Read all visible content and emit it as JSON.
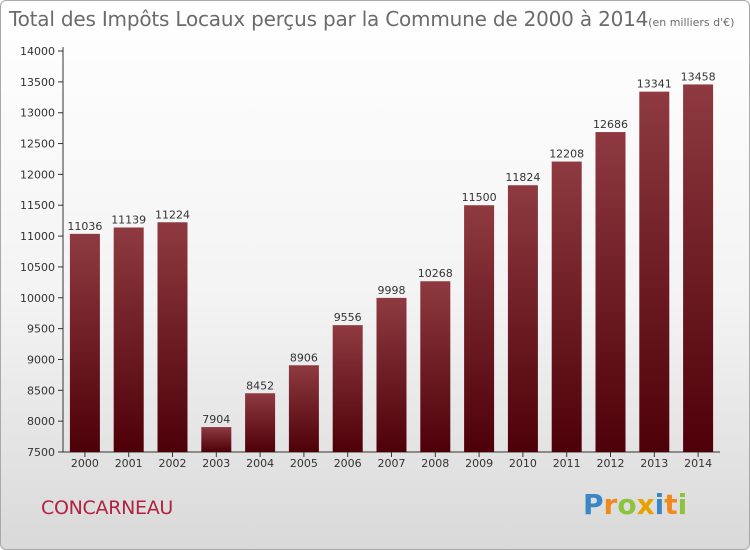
{
  "header": {
    "title": "Total des Impôts Locaux perçus par la Commune de 2000 à 2014",
    "unit": "(en milliers d'€)"
  },
  "footer": {
    "city": "CONCARNEAU",
    "brand_letters": [
      "P",
      "r",
      "o",
      "x",
      "i",
      "t",
      "i"
    ],
    "brand_colors": [
      "#3a87c8",
      "#f08a1c",
      "#8cc43c",
      "#e8a200",
      "#3a87c8",
      "#f08a1c",
      "#8cc43c"
    ]
  },
  "colors": {
    "bar_light": "#8e3a40",
    "bar_dark": "#4e0008",
    "city": "#b0233f"
  },
  "chart_data": {
    "type": "bar",
    "title": "Total des Impôts Locaux perçus par la Commune de 2000 à 2014",
    "categories": [
      "2000",
      "2001",
      "2002",
      "2003",
      "2004",
      "2005",
      "2006",
      "2007",
      "2008",
      "2009",
      "2010",
      "2011",
      "2012",
      "2013",
      "2014"
    ],
    "values": [
      11036,
      11139,
      11224,
      7904,
      8452,
      8906,
      9556,
      9998,
      10268,
      11500,
      11824,
      12208,
      12686,
      13341,
      13458
    ],
    "yticks": [
      7500,
      8000,
      8500,
      9000,
      9500,
      10000,
      10500,
      11000,
      11500,
      12000,
      12500,
      13000,
      13500,
      14000
    ],
    "ylim": [
      7500,
      14000
    ],
    "grid": false,
    "legend": "none"
  }
}
